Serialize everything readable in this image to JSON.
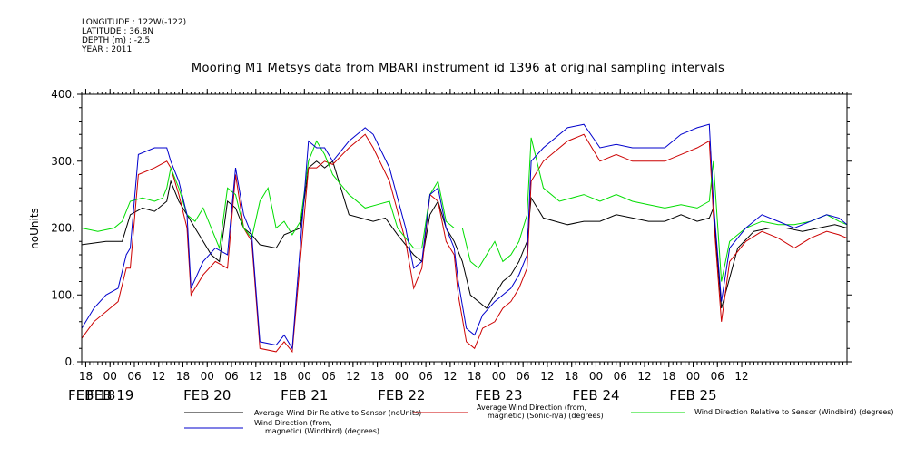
{
  "header": {
    "meta_lines": [
      "LONGITUDE : 122W(-122)",
      "LATITUDE : 36.8N",
      "DEPTH (m) : -2.5",
      "YEAR : 2011"
    ]
  },
  "chart_data": {
    "type": "line",
    "title": "Mooring M1 Metsys data from MBARI instrument id 1396 at original sampling intervals",
    "xlabel": "",
    "ylabel": "noUnits",
    "ylim": [
      0,
      400
    ],
    "yticks": [
      "0.",
      "100.",
      "200.",
      "300.",
      "400."
    ],
    "xlim_hours": [
      0,
      189
    ],
    "hour_ticks": [
      "18",
      "00",
      "06",
      "12",
      "18",
      "00",
      "06",
      "12",
      "18",
      "00",
      "06",
      "12",
      "18",
      "00",
      "06",
      "12",
      "18",
      "00",
      "06",
      "12",
      "18",
      "00",
      "06",
      "12",
      "18",
      "00",
      "06",
      "12"
    ],
    "day_labels": [
      "FEB 18",
      "FEB 19",
      "FEB 20",
      "FEB 21",
      "FEB 22",
      "FEB 23",
      "FEB 24",
      "FEB 25"
    ],
    "grid": false,
    "legend_position": "bottom",
    "colors": {
      "black": "#000000",
      "red": "#cc0000",
      "green": "#00dd00",
      "blue": "#0000cc"
    },
    "series": [
      {
        "name": "Average Wind Dir Relative to Sensor (noUnits)",
        "color": "#000000",
        "points": [
          [
            0,
            175
          ],
          [
            6,
            180
          ],
          [
            10,
            180
          ],
          [
            12,
            220
          ],
          [
            15,
            230
          ],
          [
            18,
            225
          ],
          [
            21,
            240
          ],
          [
            22,
            270
          ],
          [
            24,
            240
          ],
          [
            27,
            210
          ],
          [
            30,
            180
          ],
          [
            32,
            160
          ],
          [
            34,
            150
          ],
          [
            36,
            240
          ],
          [
            38,
            230
          ],
          [
            40,
            200
          ],
          [
            42,
            190
          ],
          [
            44,
            175
          ],
          [
            48,
            170
          ],
          [
            50,
            190
          ],
          [
            54,
            200
          ],
          [
            56,
            290
          ],
          [
            58,
            300
          ],
          [
            60,
            290
          ],
          [
            62,
            300
          ],
          [
            66,
            220
          ],
          [
            72,
            210
          ],
          [
            75,
            215
          ],
          [
            78,
            190
          ],
          [
            82,
            160
          ],
          [
            84,
            150
          ],
          [
            86,
            220
          ],
          [
            88,
            240
          ],
          [
            90,
            200
          ],
          [
            92,
            180
          ],
          [
            94,
            150
          ],
          [
            96,
            100
          ],
          [
            98,
            90
          ],
          [
            100,
            80
          ],
          [
            102,
            100
          ],
          [
            104,
            120
          ],
          [
            106,
            130
          ],
          [
            108,
            150
          ],
          [
            110,
            180
          ],
          [
            111,
            245
          ],
          [
            114,
            215
          ],
          [
            120,
            205
          ],
          [
            124,
            210
          ],
          [
            128,
            210
          ],
          [
            132,
            220
          ],
          [
            136,
            215
          ],
          [
            140,
            210
          ],
          [
            144,
            210
          ],
          [
            148,
            220
          ],
          [
            152,
            210
          ],
          [
            155,
            215
          ],
          [
            156,
            230
          ],
          [
            158,
            80
          ],
          [
            162,
            170
          ],
          [
            166,
            195
          ],
          [
            170,
            200
          ],
          [
            174,
            200
          ],
          [
            178,
            195
          ],
          [
            182,
            200
          ],
          [
            186,
            205
          ],
          [
            189,
            200
          ]
        ]
      },
      {
        "name": "Average Wind Direction (from, magnetic) (Sonic-n/a) (degrees)",
        "color": "#cc0000",
        "points": [
          [
            0,
            35
          ],
          [
            3,
            60
          ],
          [
            6,
            75
          ],
          [
            9,
            90
          ],
          [
            11,
            140
          ],
          [
            12,
            140
          ],
          [
            14,
            280
          ],
          [
            18,
            290
          ],
          [
            21,
            300
          ],
          [
            22,
            290
          ],
          [
            24,
            250
          ],
          [
            26,
            200
          ],
          [
            27,
            100
          ],
          [
            30,
            130
          ],
          [
            33,
            150
          ],
          [
            36,
            140
          ],
          [
            38,
            280
          ],
          [
            40,
            200
          ],
          [
            42,
            180
          ],
          [
            44,
            20
          ],
          [
            48,
            15
          ],
          [
            50,
            30
          ],
          [
            52,
            15
          ],
          [
            56,
            290
          ],
          [
            58,
            290
          ],
          [
            60,
            300
          ],
          [
            62,
            295
          ],
          [
            66,
            320
          ],
          [
            68,
            330
          ],
          [
            70,
            340
          ],
          [
            72,
            320
          ],
          [
            76,
            270
          ],
          [
            80,
            180
          ],
          [
            82,
            110
          ],
          [
            84,
            140
          ],
          [
            86,
            250
          ],
          [
            88,
            240
          ],
          [
            90,
            180
          ],
          [
            92,
            160
          ],
          [
            93,
            100
          ],
          [
            95,
            30
          ],
          [
            97,
            20
          ],
          [
            99,
            50
          ],
          [
            102,
            60
          ],
          [
            104,
            80
          ],
          [
            106,
            90
          ],
          [
            108,
            110
          ],
          [
            110,
            140
          ],
          [
            111,
            270
          ],
          [
            114,
            300
          ],
          [
            120,
            330
          ],
          [
            124,
            340
          ],
          [
            128,
            300
          ],
          [
            132,
            310
          ],
          [
            136,
            300
          ],
          [
            140,
            300
          ],
          [
            144,
            300
          ],
          [
            148,
            310
          ],
          [
            152,
            320
          ],
          [
            155,
            330
          ],
          [
            156,
            220
          ],
          [
            158,
            60
          ],
          [
            160,
            150
          ],
          [
            164,
            180
          ],
          [
            168,
            195
          ],
          [
            172,
            185
          ],
          [
            176,
            170
          ],
          [
            180,
            185
          ],
          [
            184,
            195
          ],
          [
            187,
            190
          ],
          [
            189,
            185
          ]
        ]
      },
      {
        "name": "Wind Direction Relative to Sensor (Windbird) (degrees)",
        "color": "#00dd00",
        "points": [
          [
            0,
            200
          ],
          [
            4,
            195
          ],
          [
            8,
            200
          ],
          [
            10,
            210
          ],
          [
            12,
            240
          ],
          [
            15,
            245
          ],
          [
            18,
            240
          ],
          [
            20,
            245
          ],
          [
            21,
            260
          ],
          [
            22,
            290
          ],
          [
            24,
            260
          ],
          [
            26,
            220
          ],
          [
            28,
            210
          ],
          [
            30,
            230
          ],
          [
            32,
            200
          ],
          [
            34,
            170
          ],
          [
            36,
            260
          ],
          [
            38,
            250
          ],
          [
            40,
            200
          ],
          [
            42,
            185
          ],
          [
            44,
            240
          ],
          [
            46,
            260
          ],
          [
            48,
            200
          ],
          [
            50,
            210
          ],
          [
            52,
            190
          ],
          [
            54,
            210
          ],
          [
            56,
            300
          ],
          [
            58,
            330
          ],
          [
            60,
            310
          ],
          [
            62,
            280
          ],
          [
            66,
            250
          ],
          [
            70,
            230
          ],
          [
            73,
            235
          ],
          [
            76,
            240
          ],
          [
            78,
            200
          ],
          [
            82,
            170
          ],
          [
            84,
            170
          ],
          [
            86,
            250
          ],
          [
            88,
            270
          ],
          [
            90,
            210
          ],
          [
            92,
            200
          ],
          [
            94,
            200
          ],
          [
            96,
            150
          ],
          [
            98,
            140
          ],
          [
            100,
            160
          ],
          [
            102,
            180
          ],
          [
            104,
            150
          ],
          [
            106,
            160
          ],
          [
            108,
            180
          ],
          [
            110,
            220
          ],
          [
            111,
            335
          ],
          [
            114,
            260
          ],
          [
            118,
            240
          ],
          [
            124,
            250
          ],
          [
            128,
            240
          ],
          [
            132,
            250
          ],
          [
            136,
            240
          ],
          [
            140,
            235
          ],
          [
            144,
            230
          ],
          [
            148,
            235
          ],
          [
            152,
            230
          ],
          [
            155,
            240
          ],
          [
            156,
            300
          ],
          [
            158,
            120
          ],
          [
            160,
            180
          ],
          [
            164,
            200
          ],
          [
            168,
            210
          ],
          [
            172,
            205
          ],
          [
            176,
            205
          ],
          [
            180,
            210
          ],
          [
            184,
            220
          ],
          [
            187,
            210
          ],
          [
            189,
            205
          ]
        ]
      },
      {
        "name": "Wind Direction (from, magnetic) (Windbird) (degrees)",
        "color": "#0000cc",
        "points": [
          [
            0,
            50
          ],
          [
            3,
            80
          ],
          [
            6,
            100
          ],
          [
            9,
            110
          ],
          [
            11,
            160
          ],
          [
            12,
            170
          ],
          [
            14,
            310
          ],
          [
            18,
            320
          ],
          [
            21,
            320
          ],
          [
            22,
            300
          ],
          [
            24,
            270
          ],
          [
            26,
            220
          ],
          [
            27,
            110
          ],
          [
            30,
            150
          ],
          [
            33,
            170
          ],
          [
            36,
            160
          ],
          [
            38,
            290
          ],
          [
            40,
            220
          ],
          [
            42,
            190
          ],
          [
            44,
            30
          ],
          [
            48,
            25
          ],
          [
            50,
            40
          ],
          [
            52,
            20
          ],
          [
            56,
            330
          ],
          [
            58,
            320
          ],
          [
            60,
            320
          ],
          [
            62,
            300
          ],
          [
            66,
            330
          ],
          [
            68,
            340
          ],
          [
            70,
            350
          ],
          [
            72,
            340
          ],
          [
            76,
            290
          ],
          [
            80,
            200
          ],
          [
            82,
            140
          ],
          [
            84,
            150
          ],
          [
            86,
            250
          ],
          [
            88,
            260
          ],
          [
            90,
            200
          ],
          [
            92,
            170
          ],
          [
            93,
            120
          ],
          [
            95,
            50
          ],
          [
            97,
            40
          ],
          [
            99,
            70
          ],
          [
            102,
            90
          ],
          [
            104,
            100
          ],
          [
            106,
            110
          ],
          [
            108,
            130
          ],
          [
            110,
            160
          ],
          [
            111,
            300
          ],
          [
            114,
            320
          ],
          [
            120,
            350
          ],
          [
            124,
            355
          ],
          [
            128,
            320
          ],
          [
            132,
            325
          ],
          [
            136,
            320
          ],
          [
            140,
            320
          ],
          [
            144,
            320
          ],
          [
            148,
            340
          ],
          [
            152,
            350
          ],
          [
            155,
            355
          ],
          [
            156,
            240
          ],
          [
            158,
            90
          ],
          [
            160,
            170
          ],
          [
            164,
            200
          ],
          [
            168,
            220
          ],
          [
            172,
            210
          ],
          [
            176,
            200
          ],
          [
            180,
            210
          ],
          [
            184,
            220
          ],
          [
            187,
            215
          ],
          [
            189,
            205
          ]
        ]
      }
    ]
  }
}
